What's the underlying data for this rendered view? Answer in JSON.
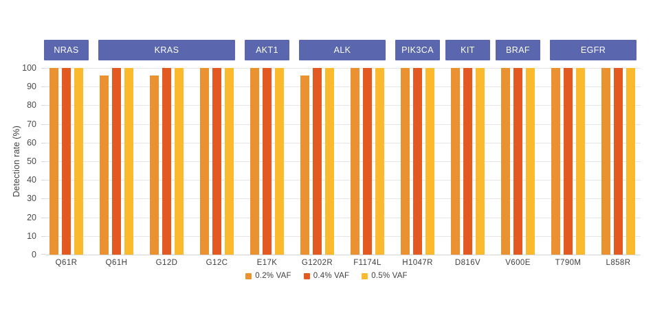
{
  "chart_data": {
    "type": "bar",
    "title": "",
    "ylabel": "Detection rate (%)",
    "ylim": [
      0,
      100
    ],
    "yticks": [
      0,
      10,
      20,
      30,
      40,
      50,
      60,
      70,
      80,
      90,
      100
    ],
    "grid": true,
    "legend_position": "bottom-center",
    "categories": [
      "Q61R",
      "Q61H",
      "G12D",
      "G12C",
      "E17K",
      "G1202R",
      "F1174L",
      "H1047R",
      "D816V",
      "V600E",
      "T790M",
      "L858R"
    ],
    "gene_groups": [
      {
        "label": "NRAS",
        "span": 1
      },
      {
        "label": "KRAS",
        "span": 3
      },
      {
        "label": "AKT1",
        "span": 1
      },
      {
        "label": "ALK",
        "span": 2
      },
      {
        "label": "PIK3CA",
        "span": 1
      },
      {
        "label": "KIT",
        "span": 1
      },
      {
        "label": "BRAF",
        "span": 1
      },
      {
        "label": "EGFR",
        "span": 2
      }
    ],
    "series": [
      {
        "name": "0.2% VAF",
        "color": "#EA9130",
        "values": [
          100,
          96,
          96,
          100,
          100,
          96,
          100,
          100,
          100,
          100,
          100,
          100
        ]
      },
      {
        "name": "0.4% VAF",
        "color": "#E25A22",
        "values": [
          100,
          100,
          100,
          100,
          100,
          100,
          100,
          100,
          100,
          100,
          100,
          100
        ]
      },
      {
        "name": "0.5% VAF",
        "color": "#FBB92E",
        "values": [
          100,
          100,
          100,
          100,
          100,
          100,
          100,
          100,
          100,
          100,
          100,
          100
        ]
      }
    ]
  },
  "colors": {
    "gene_header_bg": "#5A66AE",
    "gene_header_text": "#FFFFFF",
    "gridline": "#E5E5E8",
    "axis_line": "#D6D6D6",
    "tick_text": "#4A4A4A",
    "label_text": "#3E3E3E"
  }
}
